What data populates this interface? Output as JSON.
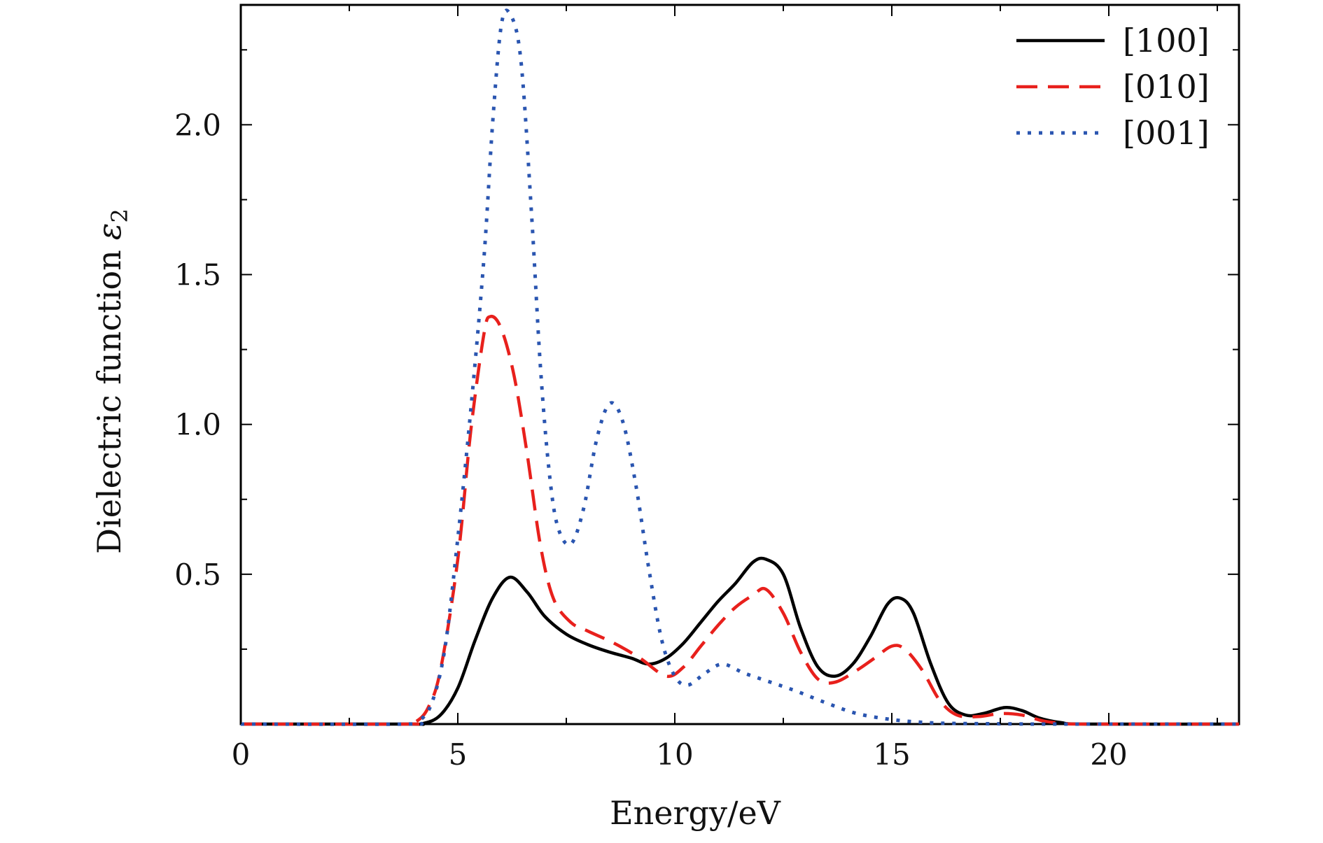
{
  "chart_data": {
    "type": "line",
    "title": "",
    "xlabel": "Energy/eV",
    "ylabel": "Dielectric function",
    "ylabel_symbol": "ε",
    "ylabel_subscript": "2",
    "xlim": [
      0,
      23
    ],
    "ylim": [
      0,
      2.4
    ],
    "x_ticks": [
      0,
      5,
      10,
      15,
      20
    ],
    "x_tick_labels": [
      "0",
      "5",
      "10",
      "15",
      "20"
    ],
    "y_ticks": [
      0.5,
      1.0,
      1.5,
      2.0
    ],
    "y_tick_labels": [
      "0.5",
      "1.0",
      "1.5",
      "2.0"
    ],
    "grid": false,
    "legend_position": "top-right",
    "series": [
      {
        "name": "[100]",
        "color": "#000000",
        "style": "solid",
        "points": [
          [
            0,
            0
          ],
          [
            3.8,
            0
          ],
          [
            4.2,
            0.002
          ],
          [
            4.6,
            0.03
          ],
          [
            5.0,
            0.12
          ],
          [
            5.4,
            0.28
          ],
          [
            5.8,
            0.42
          ],
          [
            6.2,
            0.49
          ],
          [
            6.6,
            0.44
          ],
          [
            7.0,
            0.36
          ],
          [
            7.5,
            0.3
          ],
          [
            8.0,
            0.265
          ],
          [
            8.5,
            0.24
          ],
          [
            9.0,
            0.22
          ],
          [
            9.4,
            0.2
          ],
          [
            9.8,
            0.22
          ],
          [
            10.2,
            0.27
          ],
          [
            10.6,
            0.34
          ],
          [
            11.0,
            0.41
          ],
          [
            11.4,
            0.47
          ],
          [
            11.8,
            0.54
          ],
          [
            12.1,
            0.55
          ],
          [
            12.5,
            0.5
          ],
          [
            12.9,
            0.32
          ],
          [
            13.3,
            0.19
          ],
          [
            13.7,
            0.16
          ],
          [
            14.1,
            0.2
          ],
          [
            14.5,
            0.29
          ],
          [
            14.9,
            0.4
          ],
          [
            15.2,
            0.42
          ],
          [
            15.5,
            0.37
          ],
          [
            15.9,
            0.2
          ],
          [
            16.3,
            0.07
          ],
          [
            16.7,
            0.03
          ],
          [
            17.1,
            0.035
          ],
          [
            17.6,
            0.055
          ],
          [
            18.0,
            0.045
          ],
          [
            18.4,
            0.02
          ],
          [
            18.9,
            0.005
          ],
          [
            19.5,
            0
          ],
          [
            23,
            0
          ]
        ]
      },
      {
        "name": "[010]",
        "color": "#e8201c",
        "style": "dashed",
        "points": [
          [
            0,
            0
          ],
          [
            3.8,
            0
          ],
          [
            4.0,
            0.005
          ],
          [
            4.3,
            0.05
          ],
          [
            4.6,
            0.18
          ],
          [
            5.0,
            0.55
          ],
          [
            5.3,
            0.98
          ],
          [
            5.6,
            1.3
          ],
          [
            5.75,
            1.36
          ],
          [
            6.0,
            1.32
          ],
          [
            6.3,
            1.16
          ],
          [
            6.6,
            0.9
          ],
          [
            6.9,
            0.6
          ],
          [
            7.2,
            0.42
          ],
          [
            7.6,
            0.34
          ],
          [
            8.0,
            0.31
          ],
          [
            8.6,
            0.27
          ],
          [
            9.2,
            0.22
          ],
          [
            9.8,
            0.16
          ],
          [
            10.2,
            0.19
          ],
          [
            10.6,
            0.26
          ],
          [
            11.0,
            0.33
          ],
          [
            11.4,
            0.39
          ],
          [
            11.8,
            0.43
          ],
          [
            12.1,
            0.45
          ],
          [
            12.5,
            0.37
          ],
          [
            12.9,
            0.24
          ],
          [
            13.3,
            0.15
          ],
          [
            13.7,
            0.14
          ],
          [
            14.2,
            0.18
          ],
          [
            14.6,
            0.22
          ],
          [
            15.0,
            0.26
          ],
          [
            15.3,
            0.25
          ],
          [
            15.7,
            0.18
          ],
          [
            16.1,
            0.08
          ],
          [
            16.5,
            0.03
          ],
          [
            17.0,
            0.025
          ],
          [
            17.5,
            0.035
          ],
          [
            18.0,
            0.03
          ],
          [
            18.5,
            0.01
          ],
          [
            19.0,
            0.002
          ],
          [
            19.5,
            0
          ],
          [
            23,
            0
          ]
        ]
      },
      {
        "name": "[001]",
        "color": "#2a55b0",
        "style": "dotted",
        "points": [
          [
            0,
            0
          ],
          [
            3.8,
            0
          ],
          [
            4.1,
            0.01
          ],
          [
            4.4,
            0.07
          ],
          [
            4.7,
            0.25
          ],
          [
            5.0,
            0.62
          ],
          [
            5.3,
            1.05
          ],
          [
            5.6,
            1.55
          ],
          [
            5.8,
            2.0
          ],
          [
            6.0,
            2.33
          ],
          [
            6.2,
            2.37
          ],
          [
            6.45,
            2.22
          ],
          [
            6.7,
            1.7
          ],
          [
            6.9,
            1.2
          ],
          [
            7.1,
            0.85
          ],
          [
            7.3,
            0.66
          ],
          [
            7.6,
            0.6
          ],
          [
            7.9,
            0.72
          ],
          [
            8.2,
            0.95
          ],
          [
            8.5,
            1.07
          ],
          [
            8.8,
            1.01
          ],
          [
            9.1,
            0.8
          ],
          [
            9.4,
            0.52
          ],
          [
            9.7,
            0.28
          ],
          [
            10.0,
            0.16
          ],
          [
            10.3,
            0.13
          ],
          [
            10.7,
            0.17
          ],
          [
            11.1,
            0.2
          ],
          [
            11.6,
            0.17
          ],
          [
            12.2,
            0.14
          ],
          [
            12.8,
            0.11
          ],
          [
            13.5,
            0.07
          ],
          [
            14.2,
            0.035
          ],
          [
            15.0,
            0.015
          ],
          [
            15.8,
            0.005
          ],
          [
            16.5,
            0.002
          ],
          [
            17.5,
            0.001
          ],
          [
            18.5,
            0
          ],
          [
            23,
            0
          ]
        ]
      }
    ]
  }
}
